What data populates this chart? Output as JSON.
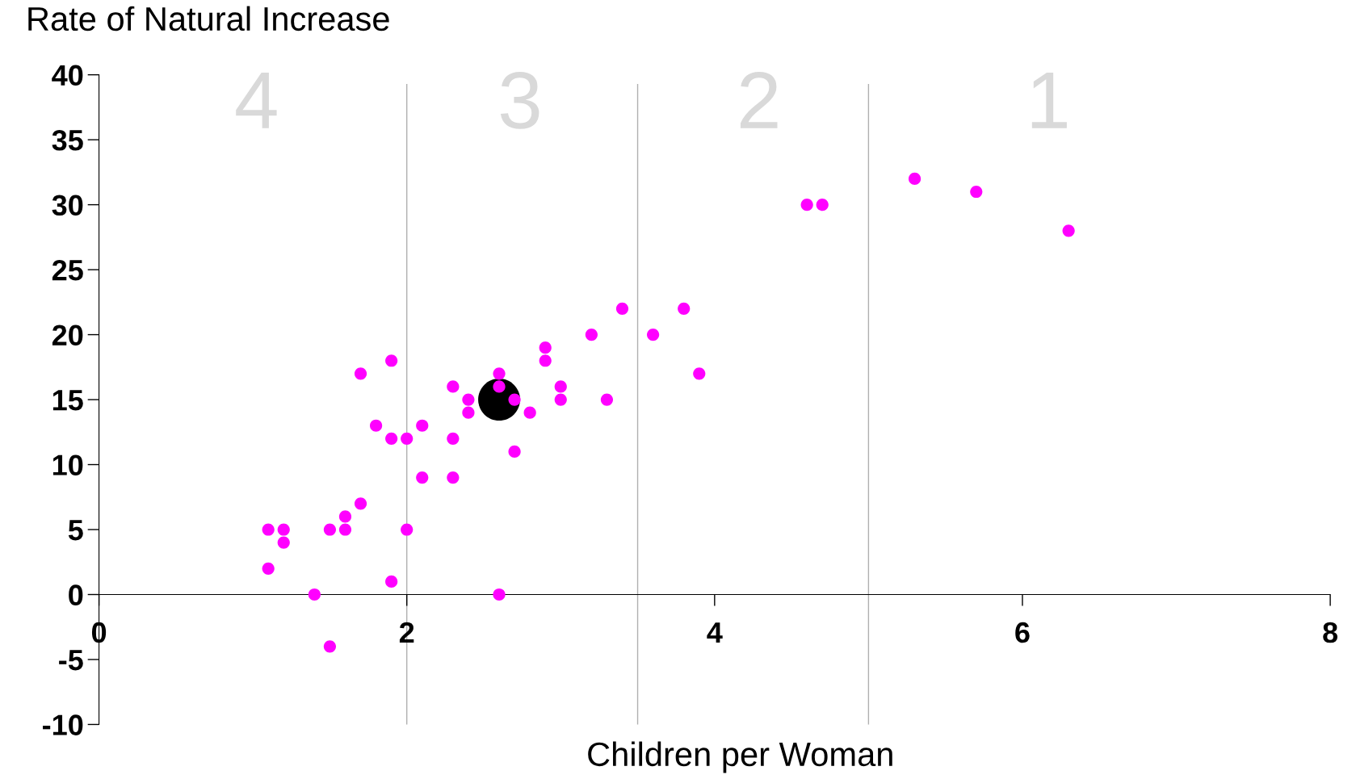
{
  "chart_data": {
    "type": "scatter",
    "ylabel": "Rate of Natural Increase",
    "xlabel": "Children per Woman",
    "xlim": [
      0,
      8
    ],
    "xticks": [
      0,
      2,
      4,
      6,
      8
    ],
    "ylim": [
      -10,
      40
    ],
    "yticks": [
      -10,
      -5,
      0,
      5,
      10,
      15,
      20,
      25,
      30,
      35,
      40
    ],
    "grid": false,
    "marker": "circle",
    "series": [
      {
        "color": "#ff00ff",
        "x": [
          1.1,
          1.1,
          1.2,
          1.2,
          1.4,
          1.5,
          1.5,
          1.6,
          1.6,
          1.7,
          1.7,
          1.8,
          1.9,
          1.9,
          1.9,
          2.0,
          2.0,
          2.1,
          2.1,
          2.3,
          2.3,
          2.3,
          2.4,
          2.4,
          2.6,
          2.6,
          2.6,
          2.7,
          2.7,
          2.8,
          2.9,
          2.9,
          3.0,
          3.0,
          3.2,
          3.3,
          3.4,
          3.6,
          3.8,
          3.9,
          4.6,
          4.7,
          5.3,
          5.7,
          6.3
        ],
        "values": [
          5,
          2,
          5,
          4,
          0,
          5,
          -4,
          6,
          5,
          7,
          17,
          13,
          18,
          12,
          1,
          12,
          5,
          13,
          9,
          16,
          12,
          9,
          15,
          14,
          17,
          16,
          0,
          15,
          11,
          14,
          19,
          18,
          16,
          15,
          20,
          15,
          22,
          20,
          22,
          17,
          30,
          30,
          32,
          31,
          28
        ]
      },
      {
        "type": "bubble",
        "color": "#000000",
        "x": [
          2.6
        ],
        "values": [
          15
        ],
        "sizes": [
          1
        ]
      }
    ],
    "ref_lines": [
      {
        "axis": "x",
        "value": 2,
        "color": "#b0b0b0"
      },
      {
        "axis": "x",
        "value": 3.5,
        "color": "#b0b0b0"
      },
      {
        "axis": "x",
        "value": 5,
        "color": "#b0b0b0"
      }
    ],
    "annotations": [
      "4",
      "3",
      "2",
      "1"
    ]
  }
}
